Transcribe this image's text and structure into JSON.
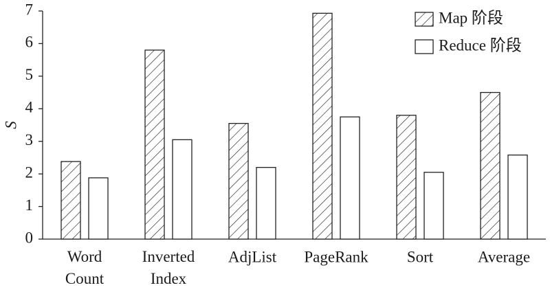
{
  "chart_data": {
    "type": "bar",
    "y_label": "S",
    "categories": [
      "Word Count",
      "Inverted Index",
      "AdjList",
      "PageRank",
      "Sort",
      "Average"
    ],
    "series": [
      {
        "name": "Map 阶段",
        "color": "#ffffff",
        "hatch": true,
        "values": [
          2.38,
          5.8,
          3.55,
          6.93,
          3.8,
          4.5
        ]
      },
      {
        "name": "Reduce 阶段",
        "color": "#ffffff",
        "hatch": false,
        "values": [
          1.88,
          3.05,
          2.2,
          3.75,
          2.05,
          2.58
        ]
      }
    ],
    "ylim": [
      0,
      7
    ],
    "yticks": [
      0,
      1,
      2,
      3,
      4,
      5,
      6,
      7
    ],
    "grid": false,
    "legend": "upper right"
  }
}
